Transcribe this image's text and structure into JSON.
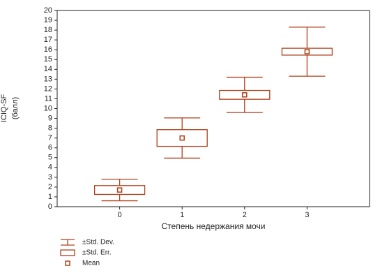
{
  "chart_data": {
    "type": "mean_error_box",
    "y_label": [
      "ICIQ-SF",
      "(балл)"
    ],
    "x_label": "Степень недержания мочи",
    "x": [
      0,
      1,
      2,
      3
    ],
    "xlim": [
      -1,
      4
    ],
    "xticks": [
      0,
      1,
      2,
      3
    ],
    "ylim": [
      0,
      20
    ],
    "yticks": [
      0,
      1,
      2,
      3,
      4,
      5,
      6,
      7,
      8,
      9,
      10,
      11,
      12,
      13,
      14,
      15,
      16,
      17,
      18,
      19,
      20
    ],
    "color": "#b0401c",
    "series": [
      {
        "name": "±Std. Dev.",
        "values": [
          1.1,
          2.05,
          1.8,
          2.5
        ]
      },
      {
        "name": "±Std. Err.",
        "values": [
          0.45,
          0.85,
          0.45,
          0.35
        ]
      },
      {
        "name": "Mean",
        "values": [
          1.7,
          7.0,
          11.4,
          15.8
        ]
      }
    ]
  }
}
